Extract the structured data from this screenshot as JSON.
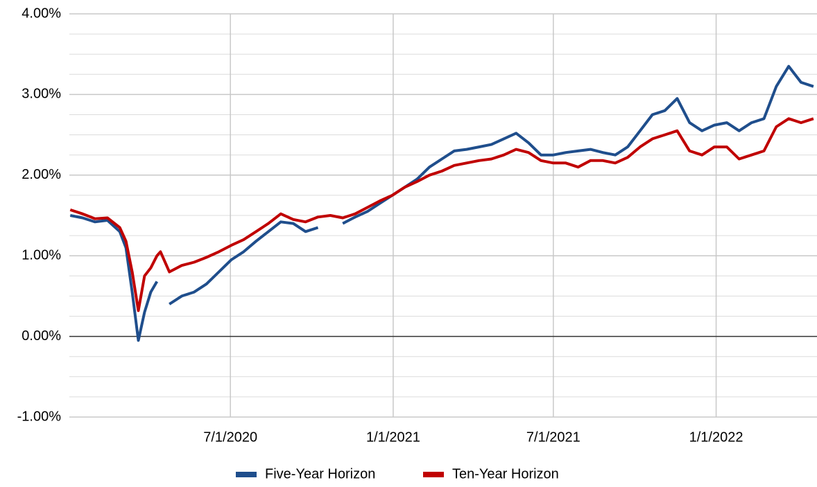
{
  "chart_data": {
    "type": "line",
    "x": [
      "2020-01-02",
      "2020-01-16",
      "2020-01-30",
      "2020-02-13",
      "2020-02-27",
      "2020-03-05",
      "2020-03-12",
      "2020-03-19",
      "2020-03-26",
      "2020-04-02",
      "2020-04-09",
      "2020-04-13",
      "2020-04-23",
      "2020-05-07",
      "2020-05-21",
      "2020-06-04",
      "2020-06-18",
      "2020-07-02",
      "2020-07-16",
      "2020-07-30",
      "2020-08-13",
      "2020-08-27",
      "2020-09-10",
      "2020-09-24",
      "2020-10-08",
      "2020-10-22",
      "2020-11-05",
      "2020-11-19",
      "2020-12-03",
      "2020-12-17",
      "2020-12-31",
      "2021-01-14",
      "2021-01-28",
      "2021-02-11",
      "2021-02-25",
      "2021-03-11",
      "2021-03-25",
      "2021-04-08",
      "2021-04-22",
      "2021-05-06",
      "2021-05-20",
      "2021-06-03",
      "2021-06-17",
      "2021-07-01",
      "2021-07-15",
      "2021-07-29",
      "2021-08-12",
      "2021-08-26",
      "2021-09-09",
      "2021-09-23",
      "2021-10-07",
      "2021-10-21",
      "2021-11-04",
      "2021-11-18",
      "2021-12-02",
      "2021-12-16",
      "2021-12-30",
      "2022-01-13",
      "2022-01-27",
      "2022-02-10",
      "2022-02-24",
      "2022-03-10",
      "2022-03-24",
      "2022-04-07",
      "2022-04-21"
    ],
    "series": [
      {
        "name": "Five-Year Horizon",
        "color": "#1f4e8c",
        "values": [
          1.5,
          1.47,
          1.42,
          1.44,
          1.3,
          1.1,
          0.55,
          -0.05,
          0.3,
          0.55,
          0.68,
          null,
          0.4,
          0.5,
          0.55,
          0.65,
          0.8,
          0.95,
          1.05,
          1.18,
          1.3,
          1.42,
          1.4,
          1.3,
          1.35,
          null,
          1.4,
          1.48,
          1.55,
          1.65,
          1.75,
          1.85,
          1.95,
          2.1,
          2.2,
          2.3,
          2.32,
          2.35,
          2.38,
          2.45,
          2.52,
          2.4,
          2.25,
          2.25,
          2.28,
          2.3,
          2.32,
          2.28,
          2.25,
          2.35,
          2.55,
          2.75,
          2.8,
          2.95,
          2.65,
          2.55,
          2.62,
          2.65,
          2.55,
          2.65,
          2.7,
          3.1,
          3.35,
          3.15,
          3.1
        ]
      },
      {
        "name": "Ten-Year Horizon",
        "color": "#c00000",
        "values": [
          1.57,
          1.52,
          1.46,
          1.47,
          1.35,
          1.18,
          0.8,
          0.32,
          0.75,
          0.85,
          1.0,
          1.05,
          0.8,
          0.88,
          0.92,
          0.98,
          1.05,
          1.13,
          1.2,
          1.3,
          1.4,
          1.52,
          1.45,
          1.42,
          1.48,
          1.5,
          1.47,
          1.52,
          1.6,
          1.68,
          1.75,
          1.85,
          1.92,
          2.0,
          2.05,
          2.12,
          2.15,
          2.18,
          2.2,
          2.25,
          2.32,
          2.28,
          2.18,
          2.15,
          2.15,
          2.1,
          2.18,
          2.18,
          2.15,
          2.22,
          2.35,
          2.45,
          2.5,
          2.55,
          2.3,
          2.25,
          2.35,
          2.35,
          2.2,
          2.25,
          2.3,
          2.6,
          2.7,
          2.65,
          2.7
        ]
      }
    ],
    "xlim": [
      "2020-01-01",
      "2022-04-25"
    ],
    "xticks": [
      {
        "value": "2020-07-01",
        "label": "7/1/2020"
      },
      {
        "value": "2021-01-01",
        "label": "1/1/2021"
      },
      {
        "value": "2021-07-01",
        "label": "7/1/2021"
      },
      {
        "value": "2022-01-01",
        "label": "1/1/2022"
      }
    ],
    "ylim": [
      -1,
      4
    ],
    "yticks": [
      {
        "value": -1,
        "label": "-1.00%"
      },
      {
        "value": 0,
        "label": "0.00%"
      },
      {
        "value": 1,
        "label": "1.00%"
      },
      {
        "value": 2,
        "label": "2.00%"
      },
      {
        "value": 3,
        "label": "3.00%"
      },
      {
        "value": 4,
        "label": "4.00%"
      }
    ],
    "minor_yticks": [
      -0.75,
      -0.5,
      -0.25,
      0.25,
      0.5,
      0.75,
      1.25,
      1.5,
      1.75,
      2.25,
      2.5,
      2.75,
      3.25,
      3.5,
      3.75
    ],
    "grid": true,
    "legend": "bottom"
  }
}
